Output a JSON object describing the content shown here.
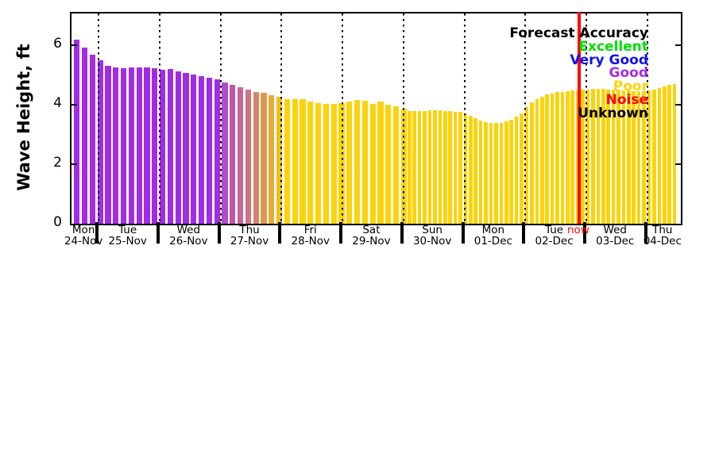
{
  "canvas": {
    "background": "#FFFFFF"
  },
  "legend": {
    "title": {
      "label": "Forecast Accuracy",
      "color": "#000000"
    },
    "items": [
      {
        "label": "Excellent",
        "color": "#00DE00"
      },
      {
        "label": "Very Good",
        "color": "#1212EE"
      },
      {
        "label": "Good",
        "color": "#A22CE4"
      },
      {
        "label": "Poor",
        "color": "#FCD408"
      },
      {
        "label": "Noise",
        "color": "#FF0000"
      },
      {
        "label": "Unknown",
        "color": "#000000"
      }
    ]
  },
  "now": {
    "label": "now",
    "color": "#FF0000"
  },
  "chart_data": {
    "type": "bar",
    "title": "Forecast Accuracy",
    "ylabel": "Wave Height, ft",
    "xlabel": "",
    "ylim": [
      0,
      7.07
    ],
    "yticks": [
      "0",
      "2",
      "4",
      "6"
    ],
    "grid": "vertical dotted lines at each day boundary, drawn over bars",
    "legend_position": "top-right text-only, right-aligned",
    "now_marker": "vertical red line late Tue 02-Dec (~22:00)",
    "x_day_labels": [
      {
        "day": "Mon",
        "date": "24-Nov"
      },
      {
        "day": "Tue",
        "date": "25-Nov"
      },
      {
        "day": "Wed",
        "date": "26-Nov"
      },
      {
        "day": "Thu",
        "date": "27-Nov"
      },
      {
        "day": "Fri",
        "date": "28-Nov"
      },
      {
        "day": "Sat",
        "date": "29-Nov"
      },
      {
        "day": "Sun",
        "date": "30-Nov"
      },
      {
        "day": "Mon",
        "date": "01-Dec"
      },
      {
        "day": "Tue",
        "date": "02-Dec"
      },
      {
        "day": "Wed",
        "date": "03-Dec"
      },
      {
        "day": "Thu",
        "date": "04-Dec"
      }
    ],
    "palette": {
      "good": "#A22CE4",
      "poor": "#FBD30A",
      "t1": "#B44BC8",
      "t2": "#BE55AE",
      "t3": "#C66699",
      "t4": "#CE7484",
      "t5": "#D4846A",
      "t6": "#DC9850",
      "t7": "#E6AC38",
      "t8": "#F0C01E"
    },
    "sections": [
      {
        "name": "3-hourly bars (Mon 24-Nov through Sat 29-Nov)",
        "heights_ft": [
          6.19,
          5.92,
          5.68,
          5.49,
          5.31,
          5.26,
          5.23,
          5.26,
          5.26,
          5.25,
          5.22,
          5.18,
          5.2,
          5.13,
          5.08,
          5.02,
          4.97,
          4.92,
          4.86,
          4.76,
          4.68,
          4.58,
          4.51,
          4.44,
          4.39,
          4.33,
          4.26,
          4.2,
          4.18,
          4.19,
          4.12,
          4.06,
          4.04,
          4.04,
          4.05,
          4.12,
          4.16,
          4.14,
          4.03,
          4.1,
          4.0,
          3.94,
          3.88
        ],
        "colors": [
          "good",
          "good",
          "good",
          "good",
          "good",
          "good",
          "good",
          "good",
          "good",
          "good",
          "good",
          "good",
          "good",
          "good",
          "good",
          "good",
          "good",
          "good",
          "good",
          "t1",
          "t2",
          "t3",
          "t4",
          "t5",
          "t6",
          "t7",
          "t8",
          "poor",
          "poor",
          "poor",
          "poor",
          "poor",
          "poor",
          "poor",
          "poor",
          "poor",
          "poor",
          "poor",
          "poor",
          "poor",
          "poor",
          "poor",
          "poor"
        ]
      },
      {
        "name": "2-hourly bars (Sun 30-Nov through Thu 04-Dec)",
        "heights_ft": [
          3.8,
          3.8,
          3.8,
          3.8,
          3.81,
          3.82,
          3.81,
          3.8,
          3.79,
          3.77,
          3.75,
          3.7,
          3.63,
          3.55,
          3.48,
          3.42,
          3.4,
          3.39,
          3.4,
          3.43,
          3.5,
          3.6,
          3.72,
          3.93,
          4.08,
          4.2,
          4.28,
          4.34,
          4.38,
          4.42,
          4.44,
          4.46,
          4.47,
          4.49,
          4.5,
          4.52,
          4.53,
          4.53,
          4.53,
          4.52,
          4.51,
          4.5,
          4.48,
          4.47,
          4.46,
          4.46,
          4.45,
          4.47,
          4.52,
          4.57,
          4.62,
          4.66,
          4.69
        ],
        "colors": [
          "poor",
          "poor",
          "poor",
          "poor",
          "poor",
          "poor",
          "poor",
          "poor",
          "poor",
          "poor",
          "poor",
          "poor",
          "poor",
          "poor",
          "poor",
          "poor",
          "poor",
          "poor",
          "poor",
          "poor",
          "poor",
          "poor",
          "poor",
          "poor",
          "poor",
          "poor",
          "poor",
          "poor",
          "poor",
          "poor",
          "poor",
          "poor",
          "poor",
          "poor",
          "poor",
          "poor",
          "poor",
          "poor",
          "poor",
          "poor",
          "poor",
          "poor",
          "poor",
          "poor",
          "poor",
          "poor",
          "poor",
          "poor",
          "poor",
          "poor",
          "poor",
          "poor",
          "poor"
        ]
      }
    ]
  }
}
